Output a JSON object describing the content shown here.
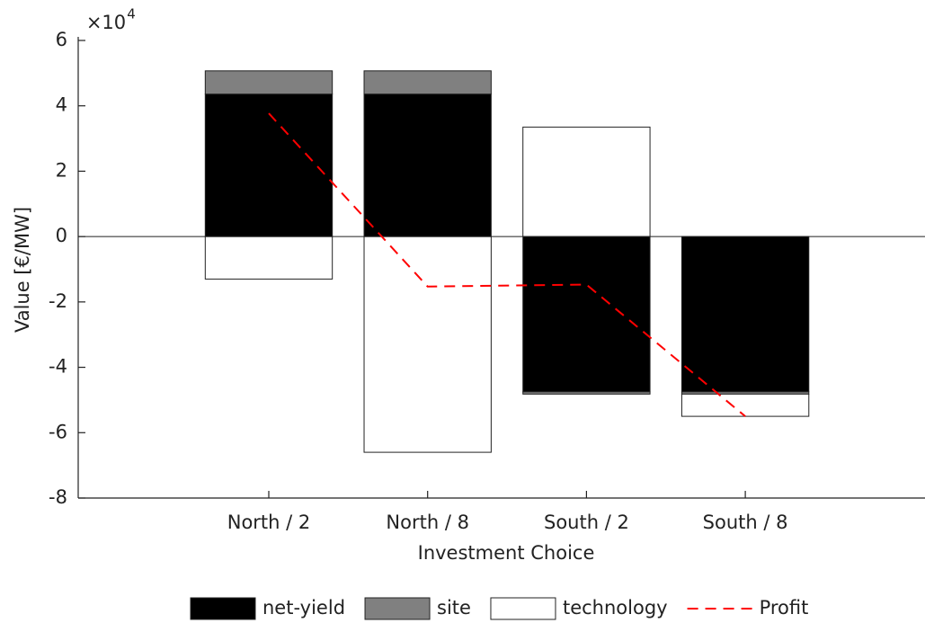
{
  "chart_data": {
    "type": "bar",
    "stacked": true,
    "xlabel": "Investment Choice",
    "ylabel": "Value [€/MW]",
    "y_scale_label": "×10",
    "y_scale_exponent": "4",
    "categories": [
      "North / 2",
      "North / 8",
      "South / 2",
      "South / 8"
    ],
    "series": [
      {
        "name": "net-yield",
        "color": "#000000",
        "values": [
          4.36,
          4.36,
          -4.75,
          -4.75
        ]
      },
      {
        "name": "site",
        "color": "#808080",
        "values": [
          0.71,
          0.71,
          -0.07,
          -0.07
        ]
      },
      {
        "name": "technology",
        "color": "#ffffff",
        "values": [
          -1.3,
          -6.6,
          3.35,
          -0.68
        ]
      },
      {
        "name": "Profit",
        "type": "line",
        "dashed": true,
        "color": "#ff0000",
        "values": [
          3.77,
          -1.53,
          -1.47,
          -5.5
        ]
      }
    ],
    "ylim": [
      -8,
      6
    ],
    "yticks": [
      -8,
      -6,
      -4,
      -2,
      0,
      2,
      4,
      6
    ],
    "grid": false,
    "zero_line": true,
    "legend": "bottom"
  }
}
